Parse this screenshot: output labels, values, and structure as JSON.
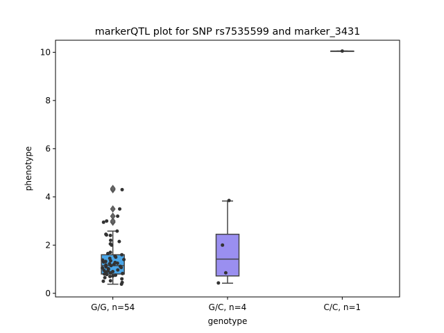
{
  "chart_data": {
    "type": "box",
    "title": "markerQTL plot for SNP rs7535599 and marker_3431",
    "xlabel": "genotype",
    "ylabel": "phenotype",
    "categories": [
      "G/G, n=54",
      "G/C, n=4",
      "C/C, n=1"
    ],
    "ylim": [
      -0.15,
      10.5
    ],
    "yticks": [
      0,
      2,
      4,
      6,
      8,
      10
    ],
    "boxes": [
      {
        "category": "G/G, n=54",
        "color": "#4aa6e8",
        "q1": 0.8,
        "median": 1.15,
        "q3": 1.6,
        "whisker_low": 0.38,
        "whisker_high": 2.58,
        "outliers": [
          2.95,
          3.0,
          3.2,
          3.5,
          4.3,
          4.35
        ],
        "points": [
          0.38,
          0.45,
          0.5,
          0.52,
          0.6,
          0.65,
          0.7,
          0.72,
          0.75,
          0.78,
          0.8,
          0.82,
          0.85,
          0.88,
          0.9,
          0.92,
          0.95,
          0.97,
          1.0,
          1.02,
          1.05,
          1.07,
          1.1,
          1.12,
          1.15,
          1.17,
          1.2,
          1.22,
          1.25,
          1.28,
          1.3,
          1.32,
          1.35,
          1.38,
          1.4,
          1.45,
          1.5,
          1.55,
          1.6,
          1.65,
          1.7,
          2.0,
          2.05,
          2.15,
          2.2,
          2.4,
          2.42,
          2.45,
          2.58,
          2.95,
          3.0,
          3.2,
          3.5,
          4.3
        ]
      },
      {
        "category": "G/C, n=4",
        "color": "#9a8ff0",
        "q1": 0.72,
        "median": 1.42,
        "q3": 2.45,
        "whisker_low": 0.42,
        "whisker_high": 3.83,
        "outliers": [],
        "points": [
          0.43,
          0.85,
          2.0,
          3.85
        ]
      },
      {
        "category": "C/C, n=1",
        "color": "#e8a0a0",
        "q1": 10.05,
        "median": 10.05,
        "q3": 10.05,
        "whisker_low": 10.05,
        "whisker_high": 10.05,
        "outliers": [],
        "points": [
          10.05
        ]
      }
    ]
  }
}
